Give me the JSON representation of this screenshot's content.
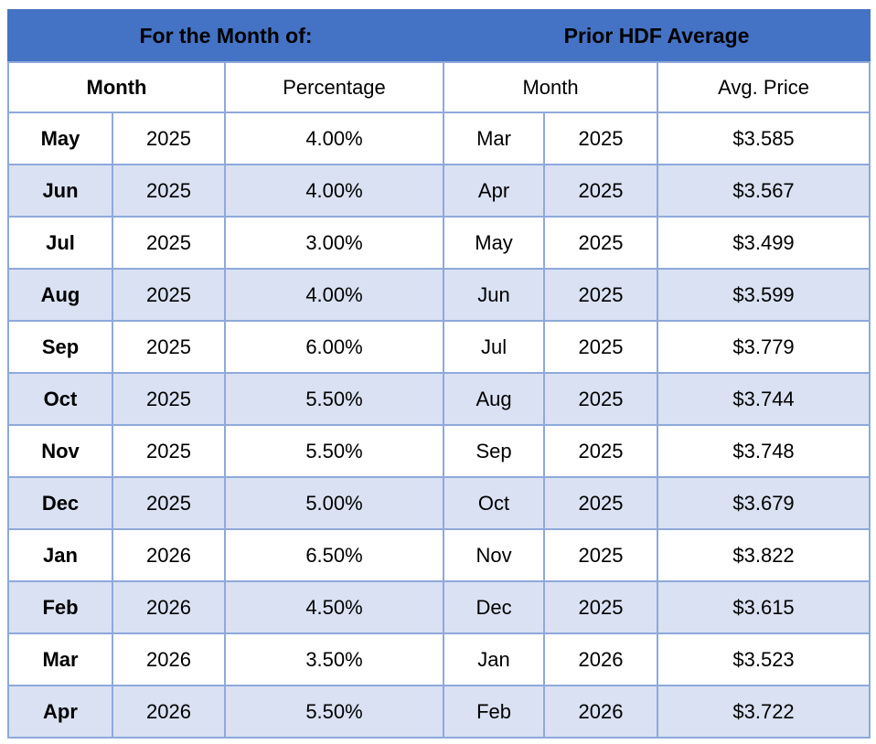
{
  "table": {
    "header": {
      "left_title": "For the Month of:",
      "right_title": "Prior HDF Average"
    },
    "columns": {
      "month_label": "Month",
      "percentage_label": "Percentage",
      "prior_month_label": "Month",
      "avg_price_label": "Avg. Price"
    },
    "rows": [
      {
        "month": "May",
        "year": "2025",
        "percentage": "4.00%",
        "prior_month": "Mar",
        "prior_year": "2025",
        "avg_price": "$3.585"
      },
      {
        "month": "Jun",
        "year": "2025",
        "percentage": "4.00%",
        "prior_month": "Apr",
        "prior_year": "2025",
        "avg_price": "$3.567"
      },
      {
        "month": "Jul",
        "year": "2025",
        "percentage": "3.00%",
        "prior_month": "May",
        "prior_year": "2025",
        "avg_price": "$3.499"
      },
      {
        "month": "Aug",
        "year": "2025",
        "percentage": "4.00%",
        "prior_month": "Jun",
        "prior_year": "2025",
        "avg_price": "$3.599"
      },
      {
        "month": "Sep",
        "year": "2025",
        "percentage": "6.00%",
        "prior_month": "Jul",
        "prior_year": "2025",
        "avg_price": "$3.779"
      },
      {
        "month": "Oct",
        "year": "2025",
        "percentage": "5.50%",
        "prior_month": "Aug",
        "prior_year": "2025",
        "avg_price": "$3.744"
      },
      {
        "month": "Nov",
        "year": "2025",
        "percentage": "5.50%",
        "prior_month": "Sep",
        "prior_year": "2025",
        "avg_price": "$3.748"
      },
      {
        "month": "Dec",
        "year": "2025",
        "percentage": "5.00%",
        "prior_month": "Oct",
        "prior_year": "2025",
        "avg_price": "$3.679"
      },
      {
        "month": "Jan",
        "year": "2026",
        "percentage": "6.50%",
        "prior_month": "Nov",
        "prior_year": "2025",
        "avg_price": "$3.822"
      },
      {
        "month": "Feb",
        "year": "2026",
        "percentage": "4.50%",
        "prior_month": "Dec",
        "prior_year": "2025",
        "avg_price": "$3.615"
      },
      {
        "month": "Mar",
        "year": "2026",
        "percentage": "3.50%",
        "prior_month": "Jan",
        "prior_year": "2026",
        "avg_price": "$3.523"
      },
      {
        "month": "Apr",
        "year": "2026",
        "percentage": "5.50%",
        "prior_month": "Feb",
        "prior_year": "2026",
        "avg_price": "$3.722"
      }
    ]
  },
  "colors": {
    "header_blue": "#4472C4",
    "row_alt_blue": "#D9E1F2",
    "row_white": "#FFFFFF",
    "border_blue": "#8EA9DB",
    "text": "#000000"
  }
}
